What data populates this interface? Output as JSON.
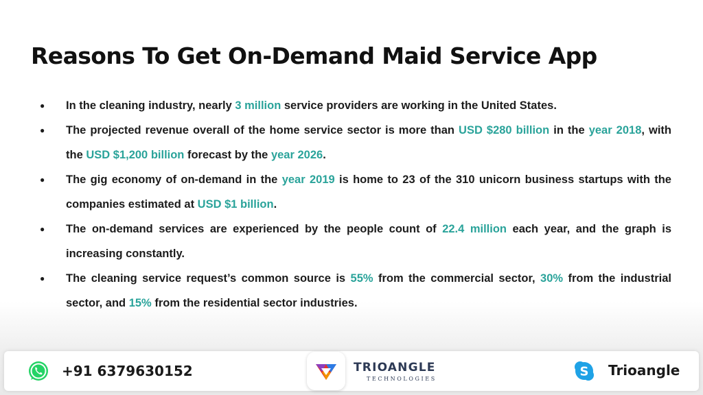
{
  "title": "Reasons To Get On-Demand Maid Service App",
  "bullet_glyph": "●",
  "bullets": [
    {
      "segments": [
        {
          "text": "In the cleaning industry, nearly ",
          "highlight": false
        },
        {
          "text": "3 million",
          "highlight": true
        },
        {
          "text": " service providers are working in the United States.",
          "highlight": false
        }
      ]
    },
    {
      "segments": [
        {
          "text": "The projected revenue overall of the home service sector is more than ",
          "highlight": false
        },
        {
          "text": "USD $280 billion",
          "highlight": true
        },
        {
          "text": " in the ",
          "highlight": false
        },
        {
          "text": "year 2018",
          "highlight": true
        },
        {
          "text": ", with the ",
          "highlight": false
        },
        {
          "text": "USD $1,200 billion",
          "highlight": true
        },
        {
          "text": " forecast by the ",
          "highlight": false
        },
        {
          "text": "year 2026",
          "highlight": true
        },
        {
          "text": ".",
          "highlight": false
        }
      ]
    },
    {
      "segments": [
        {
          "text": "The gig economy of on-demand in the ",
          "highlight": false
        },
        {
          "text": "year 2019",
          "highlight": true
        },
        {
          "text": " is home to 23 of the 310 unicorn business startups with the companies estimated at ",
          "highlight": false
        },
        {
          "text": "USD $1 billion",
          "highlight": true
        },
        {
          "text": ".",
          "highlight": false
        }
      ]
    },
    {
      "segments": [
        {
          "text": "The on-demand services are experienced by the people count of ",
          "highlight": false
        },
        {
          "text": "22.4 million",
          "highlight": true
        },
        {
          "text": " each year, and the graph is increasing constantly.",
          "highlight": false
        }
      ]
    },
    {
      "segments": [
        {
          "text": "The cleaning service request’s common source is ",
          "highlight": false
        },
        {
          "text": "55%",
          "highlight": true
        },
        {
          "text": " from the commercial sector, ",
          "highlight": false
        },
        {
          "text": "30%",
          "highlight": true
        },
        {
          "text": " from the industrial sector, and ",
          "highlight": false
        },
        {
          "text": "15%",
          "highlight": true
        },
        {
          "text": " from the residential sector industries.",
          "highlight": false
        }
      ]
    }
  ],
  "footer": {
    "whatsapp_icon": "whatsapp-icon",
    "phone": "+91 6379630152",
    "logo_icon": "trioangle-logo-icon",
    "brand_name": "TRIOANGLE",
    "brand_sub": "TECHNOLOGIES",
    "skype_icon": "skype-icon",
    "skype_name": "Trioangle"
  },
  "colors": {
    "highlight": "#2aa39a",
    "text": "#1c1c1c",
    "whatsapp": "#25d366",
    "skype": "#1fa2e6",
    "brand": "#2d3a55"
  }
}
